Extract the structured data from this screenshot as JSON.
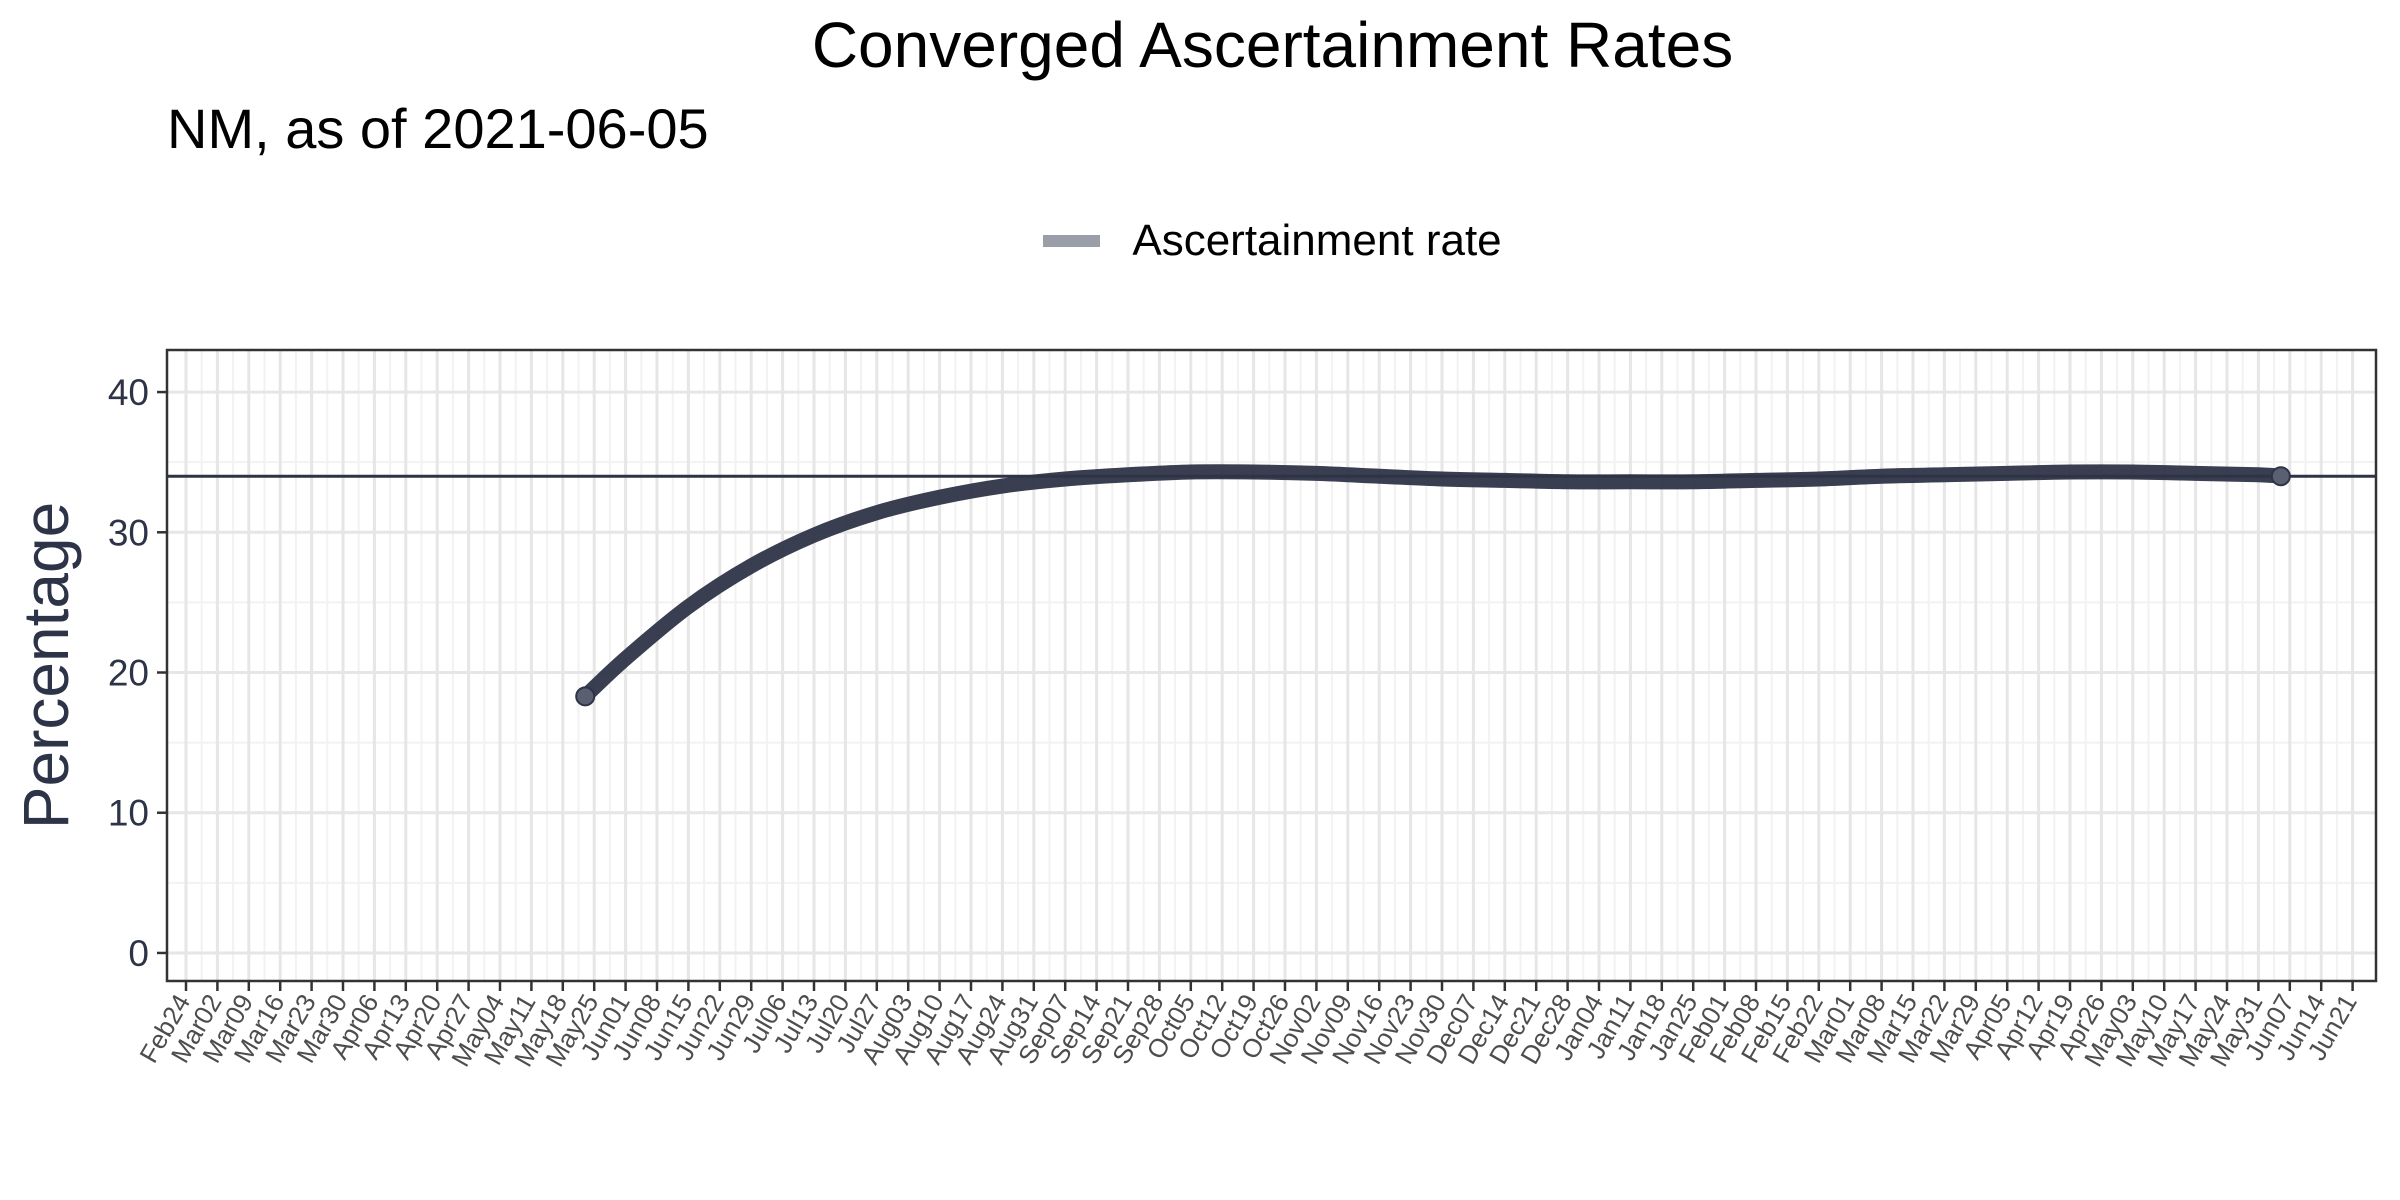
{
  "chart_data": {
    "type": "line",
    "title": "Converged Ascertainment Rates",
    "subtitle": "NM, as of 2021-06-05",
    "ylabel": "Percentage",
    "xlabel": "",
    "ylim": [
      -2,
      43
    ],
    "y_ticks": [
      0,
      10,
      20,
      30,
      40
    ],
    "x_ticks": [
      "Feb24",
      "Mar02",
      "Mar09",
      "Mar16",
      "Mar23",
      "Mar30",
      "Apr06",
      "Apr13",
      "Apr20",
      "Apr27",
      "May04",
      "May11",
      "May18",
      "May25",
      "Jun01",
      "Jun08",
      "Jun15",
      "Jun22",
      "Jun29",
      "Jul06",
      "Jul13",
      "Jul20",
      "Jul27",
      "Aug03",
      "Aug10",
      "Aug17",
      "Aug24",
      "Aug31",
      "Sep07",
      "Sep14",
      "Sep21",
      "Sep28",
      "Oct05",
      "Oct12",
      "Oct19",
      "Oct26",
      "Nov02",
      "Nov09",
      "Nov16",
      "Nov23",
      "Nov30",
      "Dec07",
      "Dec14",
      "Dec21",
      "Dec28",
      "Jan04",
      "Jan11",
      "Jan18",
      "Jan25",
      "Feb01",
      "Feb08",
      "Feb15",
      "Feb22",
      "Mar01",
      "Mar08",
      "Mar15",
      "Mar22",
      "Mar29",
      "Apr05",
      "Apr12",
      "Apr19",
      "Apr26",
      "May03",
      "May10",
      "May17",
      "May24",
      "May31",
      "Jun07",
      "Jun14",
      "Jun21"
    ],
    "grid": true,
    "legend_position": "top",
    "series": [
      {
        "name": "Ascertainment rate",
        "color": "#2e3447",
        "x": [
          "2020-05-23",
          "2020-06-01",
          "2020-06-15",
          "2020-06-29",
          "2020-07-13",
          "2020-07-27",
          "2020-08-10",
          "2020-08-24",
          "2020-09-07",
          "2020-09-21",
          "2020-10-05",
          "2020-10-19",
          "2020-11-02",
          "2020-11-16",
          "2020-11-30",
          "2020-12-14",
          "2020-12-28",
          "2021-01-11",
          "2021-01-25",
          "2021-02-08",
          "2021-02-22",
          "2021-03-08",
          "2021-03-22",
          "2021-04-05",
          "2021-04-19",
          "2021-05-03",
          "2021-05-17",
          "2021-05-31",
          "2021-06-05"
        ],
        "values": [
          18.3,
          21.0,
          24.7,
          27.6,
          29.8,
          31.4,
          32.5,
          33.3,
          33.8,
          34.1,
          34.3,
          34.3,
          34.2,
          34.0,
          33.8,
          33.7,
          33.6,
          33.6,
          33.6,
          33.7,
          33.8,
          34.0,
          34.1,
          34.2,
          34.3,
          34.3,
          34.2,
          34.1,
          34.0
        ]
      }
    ],
    "reference_line": {
      "value": 34.0,
      "color": "#2e3447"
    }
  }
}
